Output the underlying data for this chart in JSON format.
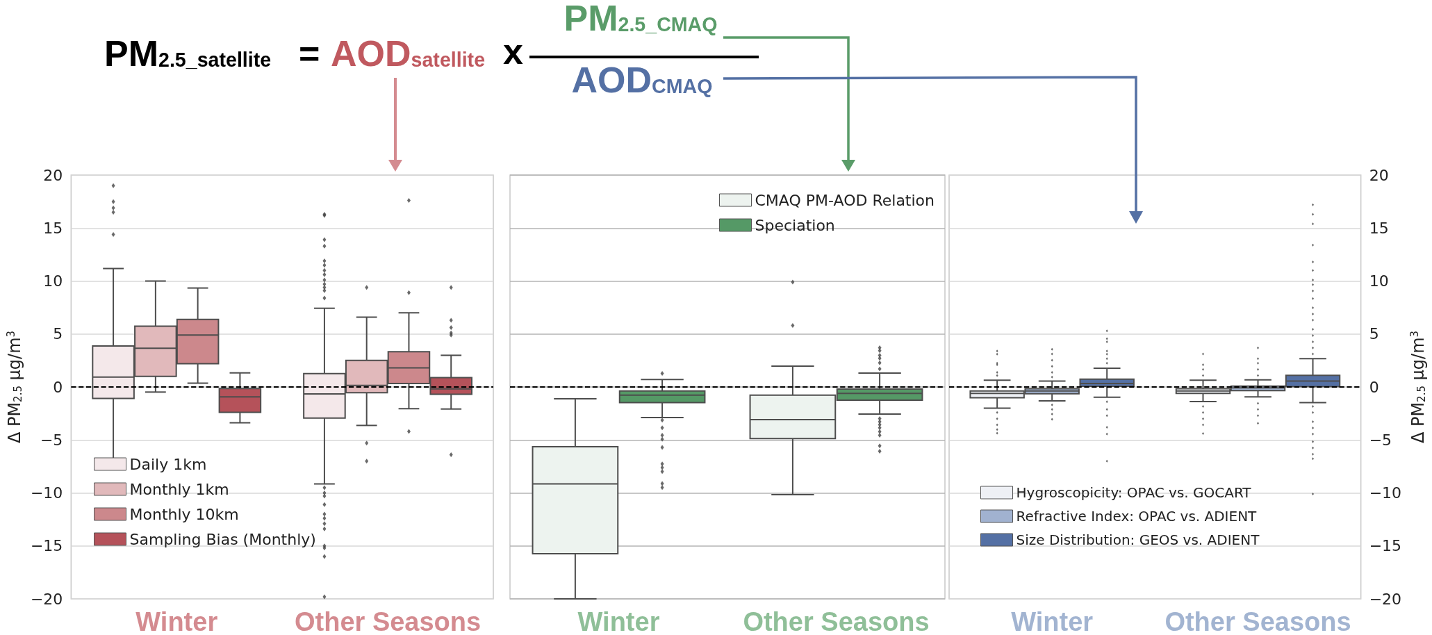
{
  "chart_data": [
    {
      "type": "other",
      "annotations": [
        "PM$_{2.5_satellite}$",
        "=",
        "AOD$_{satellite}$",
        "x",
        "PM$_{2.5_CMAQ}$",
        "AOD$_{CMAQ}$"
      ]
    },
    {
      "type": "box",
      "categories": [
        "Winter",
        "Other Seasons"
      ],
      "ylabel": "Δ PM$_{2.5}$ μg/m$^{3}$",
      "ylim": [
        -20,
        20
      ],
      "yticks": [
        -20,
        -15,
        -10,
        -5,
        0,
        5,
        10,
        15,
        20
      ],
      "grid": "y",
      "legend": "bottom left",
      "marker": "diamond",
      "ref_lines": [
        {
          "axis": "y",
          "value": 0,
          "color": "#000000",
          "line_style": "dashed"
        }
      ],
      "series": [
        {
          "name": "Daily 1km",
          "color": "#f4e8ea",
          "boxes": [
            {
              "low": -7.7,
              "q1": -1.09,
              "median": 0.94,
              "q3": 3.87,
              "high": 11.18,
              "outliers": [
                19.0,
                17.5,
                16.9,
                16.5,
                14.4
              ]
            },
            {
              "low": -9.15,
              "q1": -2.93,
              "median": -0.66,
              "q3": 1.27,
              "high": 7.43,
              "outliers": [
                16.3,
                16.2,
                13.9,
                13.3,
                11.9,
                11.5,
                11.0,
                10.6,
                10.1,
                9.7,
                9.4,
                9.1,
                8.4,
                -9.5,
                -10.0,
                -10.3,
                -11.1,
                -12.0,
                -12.4,
                -12.9,
                -13.4,
                -15.0,
                -15.2,
                -16.0,
                -19.8
              ]
            }
          ]
        },
        {
          "name": "Monthly 1km",
          "color": "#e1b9bb",
          "boxes": [
            {
              "low": -0.48,
              "q1": 1.0,
              "median": 3.66,
              "q3": 5.74,
              "high": 10.0
            },
            {
              "low": -3.63,
              "q1": -0.54,
              "median": 0.15,
              "q3": 2.51,
              "high": 6.59,
              "outliers": [
                9.4,
                -5.3,
                -7.0
              ]
            }
          ]
        },
        {
          "name": "Monthly 10km",
          "color": "#cc888c",
          "boxes": [
            {
              "low": 0.36,
              "q1": 2.2,
              "median": 4.9,
              "q3": 6.37,
              "high": 9.34
            },
            {
              "low": -2.05,
              "q1": 0.33,
              "median": 1.81,
              "q3": 3.32,
              "high": 7.0,
              "outliers": [
                17.6,
                8.9,
                -4.2
              ]
            }
          ]
        },
        {
          "name": "Sampling Bias (Monthly)",
          "color": "#b5525a",
          "boxes": [
            {
              "low": -3.38,
              "q1": -2.39,
              "median": -0.94,
              "q3": -0.15,
              "high": 1.33
            },
            {
              "low": -2.08,
              "q1": -0.69,
              "median": -0.18,
              "q3": 0.88,
              "high": 2.99,
              "outliers": [
                9.4,
                6.3,
                5.6,
                5.1,
                4.9,
                -6.4
              ]
            }
          ]
        }
      ]
    },
    {
      "type": "box",
      "categories": [
        "Winter",
        "Other Seasons"
      ],
      "ylim": [
        -20,
        20
      ],
      "yticks": [
        -20,
        -15,
        -10,
        -5,
        0,
        5,
        10,
        15,
        20
      ],
      "tick_labels": "x",
      "grid": "y",
      "legend": "top right",
      "marker": "diamond",
      "ref_lines": [
        {
          "axis": "y",
          "value": 0,
          "color": "#000000",
          "line_style": "dashed"
        }
      ],
      "series": [
        {
          "name": "CMAQ PM-AOD Relation",
          "color": "#edf3ef",
          "boxes": [
            {
              "low": -20,
              "q1": -15.73,
              "median": -9.15,
              "q3": -5.64,
              "high": -1.11
            },
            {
              "low": -10.17,
              "q1": -4.87,
              "median": -3.08,
              "q3": -0.77,
              "high": 1.97,
              "outliers": [
                9.9,
                5.8
              ]
            }
          ]
        },
        {
          "name": "Speciation",
          "color": "#559966",
          "boxes": [
            {
              "low": -2.88,
              "q1": -1.48,
              "median": -0.77,
              "q3": -0.37,
              "high": 0.71,
              "outliers": [
                1.28,
                -3.13,
                -3.85,
                -4.56,
                -4.93,
                -5.7,
                -7.26,
                -7.6,
                -7.98,
                -9.12,
                -9.49
              ]
            },
            {
              "low": -2.56,
              "q1": -1.25,
              "median": -0.6,
              "q3": -0.2,
              "high": 1.31,
              "outliers": [
                3.7,
                3.42,
                2.99,
                2.71,
                2.28,
                1.71,
                -2.99,
                -3.28,
                -3.56,
                -3.85,
                -4.22,
                -4.56,
                -5.56,
                -6.07
              ]
            }
          ]
        }
      ]
    },
    {
      "type": "box",
      "categories": [
        "Winter",
        "Other Seasons"
      ],
      "y2label": "Δ PM$_{2.5}$ μg/m$^{3}$",
      "y2lim": [
        -20,
        20
      ],
      "y2ticks": [
        -20,
        -15,
        -10,
        -5,
        0,
        5,
        10,
        15,
        20
      ],
      "grid": "y",
      "legend": "bottom left",
      "marker": "diamond",
      "ref_lines": [
        {
          "axis": "y2",
          "value": 0,
          "color": "#000000",
          "line_style": "dashed"
        }
      ],
      "series": [
        {
          "name": "Hygroscopicity: OPAC vs. GOCART",
          "color": "#eef0f5",
          "axis": "y2",
          "boxes": [
            {
              "low": -2.0,
              "q1": -1.02,
              "median": -0.61,
              "q3": -0.38,
              "high": 0.64,
              "outliers": [
                3.4,
                3.1,
                2.24,
                2.1,
                1.37,
                1.08,
                -2.41,
                -3.0,
                -3.58,
                -4.01,
                -4.36
              ]
            },
            {
              "low": -1.37,
              "q1": -0.61,
              "median": -0.38,
              "q3": -0.17,
              "high": 0.64,
              "outliers": [
                3.11,
                2.1,
                1.66,
                1.08,
                -1.83,
                -2.41,
                -3.0,
                -3.58,
                -4.39
              ]
            }
          ]
        },
        {
          "name": "Refractive Index: OPAC vs. ADIENT",
          "color": "#a1b2d0",
          "axis": "y2",
          "boxes": [
            {
              "low": -1.31,
              "q1": -0.64,
              "median": -0.38,
              "q3": -0.17,
              "high": 0.55,
              "outliers": [
                3.55,
                3.11,
                2.53,
                1.95,
                1.37,
                0.93,
                -1.69,
                -2.12,
                -2.56,
                -3.05
              ]
            },
            {
              "low": -0.93,
              "q1": -0.35,
              "median": -0.09,
              "q3": 0.09,
              "high": 0.67,
              "outliers": [
                3.69,
                2.67,
                2.24,
                1.66,
                1.08,
                -1.54,
                -2.12,
                -2.7,
                -3.43
              ]
            }
          ]
        },
        {
          "name": "Size Distribution: GEOS vs. ADIENT",
          "color": "#5470a4",
          "axis": "y2",
          "boxes": [
            {
              "low": -0.96,
              "q1": 0.06,
              "median": 0.32,
              "q3": 0.73,
              "high": 1.77,
              "outliers": [
                5.29,
                4.56,
                4.27,
                3.4,
                3.1,
                2.67,
                2.24,
                -1.4,
                -2.12,
                -2.7,
                -3.81,
                -4.45,
                -7.0
              ]
            },
            {
              "low": -1.48,
              "q1": 0.03,
              "median": 0.55,
              "q3": 1.1,
              "high": 2.67,
              "outliers": [
                17.2,
                16.3,
                15.4,
                13.4,
                11.8,
                11.0,
                10.1,
                9.65,
                9.07,
                8.34,
                7.47,
                6.89,
                6.31,
                5.44,
                4.85,
                4.27,
                3.69,
                3.11,
                -1.83,
                -2.41,
                -3.28,
                -3.87,
                -4.45,
                -5.17,
                -5.76,
                -6.34,
                -6.77,
                -10.1
              ]
            }
          ]
        }
      ]
    }
  ]
}
